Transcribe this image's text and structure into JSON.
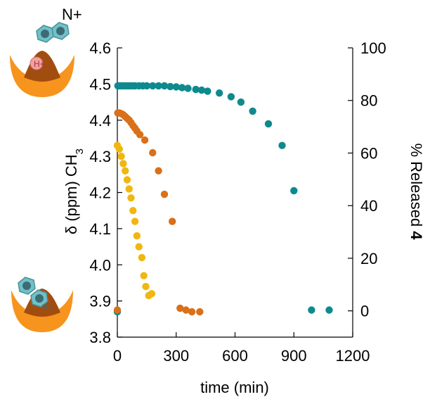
{
  "chart_data": {
    "type": "scatter",
    "xlabel": "time (min)",
    "ylabel_left": {
      "symbol": "δ",
      "text": " (ppm) CH",
      "subscript": "3"
    },
    "ylabel_right": {
      "text": "% Released ",
      "bold": "4"
    },
    "xlim": [
      0,
      1200
    ],
    "ylim_left": [
      3.8,
      4.6
    ],
    "ylim_right": [
      -10,
      100
    ],
    "x_ticks": [
      "0",
      "300",
      "600",
      "900",
      "1200"
    ],
    "y_left_ticks": [
      "3.8",
      "3.9",
      "4.0",
      "4.1",
      "4.2",
      "4.3",
      "4.4",
      "4.5",
      "4.6"
    ],
    "y_right_ticks": [
      "0",
      "20",
      "40",
      "60",
      "80",
      "100"
    ],
    "grid": false,
    "legend": "none",
    "series": [
      {
        "color": "#0e8a8f",
        "points": [
          [
            0,
            3.87
          ],
          [
            3,
            4.495
          ],
          [
            10,
            4.495
          ],
          [
            20,
            4.495
          ],
          [
            30,
            4.495
          ],
          [
            40,
            4.495
          ],
          [
            50,
            4.495
          ],
          [
            60,
            4.495
          ],
          [
            75,
            4.495
          ],
          [
            90,
            4.495
          ],
          [
            110,
            4.495
          ],
          [
            130,
            4.495
          ],
          [
            150,
            4.495
          ],
          [
            180,
            4.495
          ],
          [
            210,
            4.495
          ],
          [
            240,
            4.495
          ],
          [
            270,
            4.493
          ],
          [
            300,
            4.492
          ],
          [
            330,
            4.49
          ],
          [
            360,
            4.488
          ],
          [
            400,
            4.485
          ],
          [
            430,
            4.483
          ],
          [
            460,
            4.48
          ],
          [
            520,
            4.475
          ],
          [
            580,
            4.465
          ],
          [
            630,
            4.45
          ],
          [
            690,
            4.425
          ],
          [
            770,
            4.39
          ],
          [
            840,
            4.33
          ],
          [
            900,
            4.205
          ],
          [
            990,
            3.875
          ],
          [
            1080,
            3.875
          ]
        ]
      },
      {
        "color": "#d9701a",
        "points": [
          [
            0,
            3.875
          ],
          [
            2,
            4.42
          ],
          [
            10,
            4.42
          ],
          [
            20,
            4.418
          ],
          [
            30,
            4.415
          ],
          [
            40,
            4.41
          ],
          [
            50,
            4.405
          ],
          [
            60,
            4.4
          ],
          [
            70,
            4.393
          ],
          [
            80,
            4.385
          ],
          [
            90,
            4.378
          ],
          [
            100,
            4.37
          ],
          [
            115,
            4.36
          ],
          [
            140,
            4.345
          ],
          [
            180,
            4.31
          ],
          [
            210,
            4.26
          ],
          [
            240,
            4.195
          ],
          [
            280,
            4.12
          ],
          [
            320,
            3.88
          ],
          [
            350,
            3.875
          ],
          [
            380,
            3.87
          ],
          [
            420,
            3.87
          ]
        ]
      },
      {
        "color": "#f0b711",
        "points": [
          [
            0,
            4.33
          ],
          [
            10,
            4.32
          ],
          [
            20,
            4.3
          ],
          [
            30,
            4.28
          ],
          [
            40,
            4.26
          ],
          [
            50,
            4.235
          ],
          [
            60,
            4.21
          ],
          [
            70,
            4.185
          ],
          [
            80,
            4.15
          ],
          [
            90,
            4.12
          ],
          [
            100,
            4.08
          ],
          [
            110,
            4.05
          ],
          [
            125,
            4.02
          ],
          [
            135,
            3.97
          ],
          [
            145,
            3.94
          ],
          [
            160,
            3.915
          ],
          [
            175,
            3.92
          ]
        ]
      }
    ]
  },
  "graphics": {
    "top_left": {
      "description_icon": "host-guest-bound-icon",
      "badge_guest": "N+",
      "badge_host": "H+"
    },
    "bottom_left": {
      "description_icon": "host-guest-released-icon",
      "badge_guest": "N+"
    }
  }
}
